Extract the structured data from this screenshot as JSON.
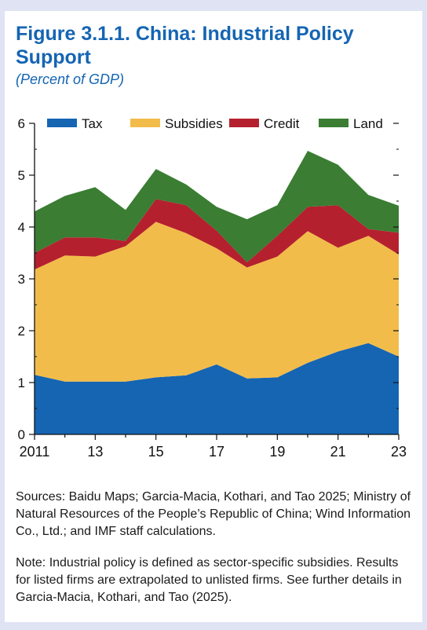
{
  "figure": {
    "title": "Figure 3.1.1. China: Industrial Policy Support",
    "subtitle": "(Percent of GDP)",
    "sources": "Sources: Baidu Maps; Garcia-Macia, Kothari, and Tao 2025; Ministry of Natural Resources of the People’s Republic of China; Wind Information Co., Ltd.; and IMF staff calculations.",
    "note": "Note: Industrial policy is defined as sector-specific subsidies. Results for listed firms are extrapolated to unlisted firms. See further details in Garcia-Macia, Kothari, and Tao (2025)."
  },
  "colors": {
    "Tax": "#1565b3",
    "Subsidies": "#f2bc4a",
    "Credit": "#b5202e",
    "Land": "#3a7d33",
    "title": "#1565b3",
    "frame": "#dfe3f3"
  },
  "chart_data": {
    "type": "area",
    "stacked": true,
    "x": [
      2011,
      2012,
      2013,
      2014,
      2015,
      2016,
      2017,
      2018,
      2019,
      2020,
      2021,
      2022,
      2023
    ],
    "x_tick_values": [
      2011,
      2013,
      2015,
      2017,
      2019,
      2021,
      2023
    ],
    "x_tick_labels": [
      "2011",
      "13",
      "15",
      "17",
      "19",
      "21",
      "23"
    ],
    "ylim": [
      0,
      6
    ],
    "y_ticks": [
      0,
      1,
      2,
      3,
      4,
      5,
      6
    ],
    "legend_position": "top",
    "series": [
      {
        "name": "Tax",
        "values": [
          1.15,
          1.02,
          1.02,
          1.02,
          1.1,
          1.14,
          1.35,
          1.08,
          1.1,
          1.38,
          1.6,
          1.76,
          1.5
        ]
      },
      {
        "name": "Subsidies",
        "values": [
          2.03,
          2.43,
          2.41,
          2.61,
          3.0,
          2.74,
          2.24,
          2.14,
          2.33,
          2.54,
          2.0,
          2.07,
          1.97
        ]
      },
      {
        "name": "Credit",
        "values": [
          0.32,
          0.35,
          0.37,
          0.1,
          0.44,
          0.54,
          0.34,
          0.1,
          0.4,
          0.47,
          0.82,
          0.13,
          0.42
        ]
      },
      {
        "name": "Land",
        "values": [
          0.8,
          0.8,
          0.97,
          0.6,
          0.58,
          0.4,
          0.46,
          0.83,
          0.59,
          1.08,
          0.78,
          0.66,
          0.52
        ]
      }
    ]
  }
}
